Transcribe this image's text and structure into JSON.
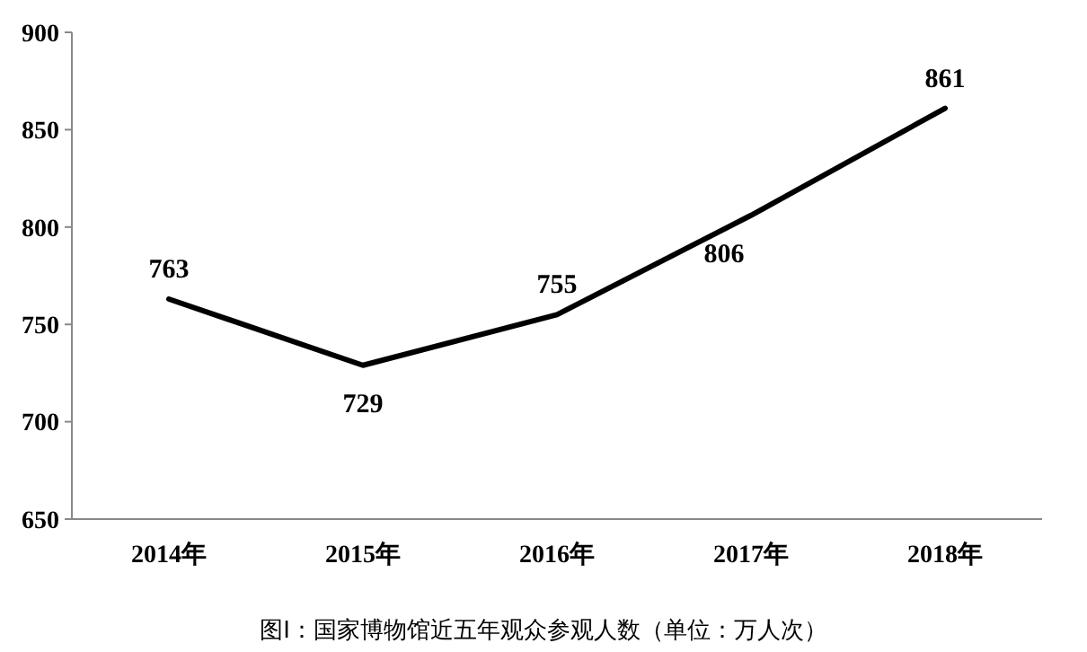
{
  "chart_data": {
    "type": "line",
    "title": "图Ⅰ：国家博物馆近五年观众参观人数（单位：万人次）",
    "categories": [
      "2014年",
      "2015年",
      "2016年",
      "2017年",
      "2018年"
    ],
    "values": [
      763,
      729,
      755,
      806,
      861
    ],
    "color": "#000000",
    "ylim": [
      650,
      900
    ],
    "yticks": [
      650,
      700,
      750,
      800,
      850,
      900
    ],
    "grid": false,
    "data_labels": true,
    "marker": "none",
    "line_style": "solid"
  }
}
